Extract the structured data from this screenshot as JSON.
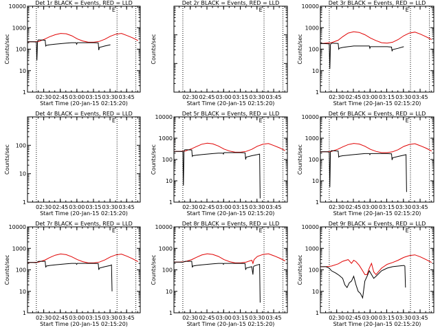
{
  "figure": {
    "background": "#ffffff",
    "event_color": "#000000",
    "lld_color": "#e00000"
  },
  "panel_defaults": {
    "type": "line",
    "xlabel": "Start Time (20-Jan-15 02:15:20)",
    "ylabel": "Counts/sec",
    "yscale": "log",
    "ylim_short": [
      1,
      1000
    ],
    "ylim_long": [
      1,
      10000
    ],
    "xlim_minutes_after_start": [
      0,
      102
    ],
    "x_tick_labels": [
      "02:30",
      "02:45",
      "03:00",
      "03:15",
      "03:30",
      "03:45"
    ],
    "x_tick_minutes_after_start": [
      14.67,
      29.67,
      44.67,
      59.67,
      74.67,
      89.67
    ],
    "dotted_vlines_minutes_after_start": [
      8,
      81,
      98
    ],
    "e_marker": "E",
    "e_marker_minute": 78
  },
  "chart_data": [
    {
      "title": "Det 1r BLACK = Events, RED = LLD",
      "ylim": [
        1,
        10000
      ],
      "y_tick_labels": [
        "1",
        "10",
        "100",
        "1000",
        "10000"
      ],
      "series": [
        {
          "name": "LLD",
          "color": "#e00000",
          "x": [
            0,
            5,
            10,
            16,
            20,
            25,
            30,
            35,
            40,
            45,
            50,
            55,
            60,
            65,
            70,
            75,
            80,
            85,
            90,
            95,
            100
          ],
          "y": [
            220,
            220,
            225,
            300,
            380,
            470,
            540,
            520,
            420,
            300,
            240,
            210,
            210,
            230,
            290,
            400,
            500,
            540,
            430,
            340,
            250
          ]
        },
        {
          "name": "Events",
          "color": "#000000",
          "x": [
            0,
            5,
            8,
            8.5,
            9,
            9.5,
            10,
            16,
            16.5,
            17,
            20,
            25,
            30,
            35,
            40,
            44,
            44.5,
            45,
            50,
            55,
            60,
            64,
            64.5,
            65,
            70,
            75
          ],
          "y": [
            220,
            220,
            215,
            30,
            200,
            260,
            270,
            260,
            140,
            150,
            160,
            170,
            180,
            190,
            200,
            200,
            170,
            200,
            200,
            200,
            200,
            195,
            90,
            120,
            140,
            160
          ]
        }
      ]
    },
    {
      "title": "Det 2r BLACK = Events, RED = LLD",
      "ylim": [
        1,
        1000
      ],
      "y_tick_labels": [],
      "series": [
        {
          "name": "LLD",
          "color": "#e00000",
          "x": [],
          "y": []
        },
        {
          "name": "Events",
          "color": "#000000",
          "x": [],
          "y": []
        }
      ]
    },
    {
      "title": "Det 3r BLACK = Events, RED = LLD",
      "ylim": [
        1,
        10000
      ],
      "y_tick_labels": [
        "1",
        "10",
        "100",
        "1000",
        "10000"
      ],
      "series": [
        {
          "name": "LLD",
          "color": "#e00000",
          "x": [
            0,
            5,
            10,
            16,
            20,
            25,
            30,
            35,
            40,
            45,
            50,
            55,
            60,
            65,
            70,
            75,
            80,
            85,
            90,
            95,
            100
          ],
          "y": [
            180,
            190,
            200,
            260,
            380,
            560,
            650,
            600,
            470,
            330,
            250,
            200,
            190,
            210,
            280,
            420,
            560,
            620,
            500,
            380,
            280
          ]
        },
        {
          "name": "Events",
          "color": "#000000",
          "x": [
            0,
            5,
            8,
            8.5,
            9,
            9.5,
            10,
            16,
            16.5,
            17,
            20,
            25,
            30,
            35,
            40,
            44,
            44.5,
            45,
            50,
            55,
            60,
            64,
            64.5,
            65,
            70,
            75
          ],
          "y": [
            180,
            180,
            175,
            12,
            160,
            180,
            190,
            185,
            100,
            110,
            120,
            130,
            140,
            140,
            140,
            140,
            110,
            130,
            130,
            130,
            130,
            125,
            80,
            95,
            110,
            130
          ]
        }
      ]
    },
    {
      "title": "Det 4r BLACK = Events, RED = LLD",
      "ylim": [
        1,
        1000
      ],
      "y_tick_labels": [
        "1",
        "10",
        "100"
      ],
      "series": [
        {
          "name": "LLD",
          "color": "#e00000",
          "x": [],
          "y": []
        },
        {
          "name": "Events",
          "color": "#000000",
          "x": [],
          "y": []
        }
      ]
    },
    {
      "title": "Det 5r BLACK = Events, RED = LLD",
      "ylim": [
        1,
        10000
      ],
      "y_tick_labels": [
        "1",
        "10",
        "100",
        "1000",
        "10000"
      ],
      "series": [
        {
          "name": "LLD",
          "color": "#e00000",
          "x": [
            0,
            5,
            10,
            16,
            20,
            25,
            30,
            35,
            40,
            45,
            50,
            55,
            60,
            65,
            70,
            75,
            80,
            85,
            90,
            95,
            100
          ],
          "y": [
            240,
            240,
            250,
            320,
            400,
            520,
            580,
            540,
            430,
            310,
            250,
            220,
            220,
            240,
            300,
            420,
            520,
            560,
            450,
            350,
            260
          ]
        },
        {
          "name": "Events",
          "color": "#000000",
          "x": [
            0,
            5,
            8,
            8.5,
            9,
            9.5,
            10,
            16,
            16.5,
            17,
            20,
            25,
            30,
            35,
            40,
            44,
            44.5,
            45,
            50,
            55,
            60,
            64,
            64.5,
            65,
            70,
            75,
            77,
            77.5
          ],
          "y": [
            240,
            240,
            235,
            6,
            240,
            280,
            290,
            280,
            140,
            150,
            160,
            170,
            180,
            190,
            200,
            200,
            180,
            210,
            210,
            210,
            210,
            205,
            100,
            130,
            150,
            170,
            180,
            1.5
          ]
        }
      ]
    },
    {
      "title": "Det 6r BLACK = Events, RED = LLD",
      "ylim": [
        1,
        10000
      ],
      "y_tick_labels": [
        "1",
        "10",
        "100",
        "1000",
        "10000"
      ],
      "series": [
        {
          "name": "LLD",
          "color": "#e00000",
          "x": [
            0,
            5,
            10,
            16,
            20,
            25,
            30,
            35,
            40,
            45,
            50,
            55,
            60,
            65,
            70,
            75,
            80,
            85,
            90,
            95,
            100
          ],
          "y": [
            230,
            230,
            240,
            310,
            390,
            500,
            570,
            530,
            420,
            300,
            240,
            210,
            210,
            230,
            290,
            410,
            510,
            550,
            440,
            340,
            250
          ]
        },
        {
          "name": "Events",
          "color": "#000000",
          "x": [
            0,
            5,
            8,
            8.5,
            9,
            9.5,
            10,
            16,
            16.5,
            17,
            20,
            25,
            30,
            35,
            40,
            44,
            44.5,
            45,
            50,
            55,
            60,
            64,
            64.5,
            65,
            70,
            75,
            77,
            77.5
          ],
          "y": [
            230,
            230,
            225,
            5,
            220,
            250,
            260,
            250,
            130,
            140,
            150,
            160,
            170,
            180,
            190,
            190,
            170,
            190,
            190,
            190,
            190,
            185,
            95,
            120,
            140,
            160,
            170,
            3
          ]
        }
      ]
    },
    {
      "title": "Det 7r BLACK = Events, RED = LLD",
      "ylim": [
        1,
        10000
      ],
      "y_tick_labels": [
        "1",
        "10",
        "100",
        "1000",
        "10000"
      ],
      "series": [
        {
          "name": "LLD",
          "color": "#e00000",
          "x": [
            0,
            5,
            10,
            16,
            20,
            25,
            30,
            35,
            40,
            45,
            50,
            55,
            60,
            65,
            70,
            75,
            80,
            85,
            90,
            95,
            100
          ],
          "y": [
            220,
            220,
            230,
            290,
            370,
            480,
            550,
            510,
            410,
            300,
            240,
            210,
            210,
            230,
            290,
            400,
            500,
            540,
            430,
            330,
            240
          ]
        },
        {
          "name": "Events",
          "color": "#000000",
          "x": [
            0,
            5,
            8,
            10,
            16,
            16.5,
            17,
            20,
            25,
            30,
            35,
            40,
            44,
            44.5,
            45,
            50,
            55,
            60,
            64,
            64.5,
            65,
            70,
            75,
            76,
            76.5
          ],
          "y": [
            220,
            220,
            215,
            250,
            250,
            130,
            150,
            160,
            170,
            180,
            190,
            200,
            200,
            180,
            200,
            200,
            200,
            200,
            195,
            100,
            120,
            140,
            160,
            170,
            10
          ]
        }
      ]
    },
    {
      "title": "Det 8r BLACK = Events, RED = LLD",
      "ylim": [
        1,
        10000
      ],
      "y_tick_labels": [
        "1",
        "10",
        "100",
        "1000",
        "10000"
      ],
      "series": [
        {
          "name": "LLD",
          "color": "#e00000",
          "x": [
            0,
            5,
            10,
            16,
            20,
            25,
            30,
            35,
            40,
            45,
            50,
            55,
            60,
            65,
            70,
            71,
            72,
            75,
            80,
            85,
            90,
            95,
            100
          ],
          "y": [
            230,
            230,
            240,
            300,
            380,
            490,
            560,
            520,
            420,
            300,
            240,
            210,
            210,
            230,
            280,
            200,
            300,
            420,
            520,
            560,
            450,
            350,
            260
          ]
        },
        {
          "name": "Events",
          "color": "#000000",
          "x": [
            0,
            5,
            8,
            10,
            16,
            16.5,
            17,
            20,
            25,
            30,
            35,
            40,
            44,
            44.5,
            45,
            50,
            55,
            60,
            64,
            64.5,
            65,
            70,
            71,
            71.5,
            72,
            75,
            77,
            77.5
          ],
          "y": [
            230,
            230,
            225,
            250,
            250,
            130,
            150,
            160,
            170,
            180,
            190,
            200,
            200,
            180,
            200,
            200,
            200,
            200,
            195,
            100,
            120,
            140,
            60,
            140,
            150,
            170,
            180,
            3
          ]
        }
      ]
    },
    {
      "title": "Det 9r BLACK = Events, RED = LLD",
      "ylim": [
        1,
        10000
      ],
      "y_tick_labels": [
        "1",
        "10",
        "100",
        "1000",
        "10000"
      ],
      "series": [
        {
          "name": "LLD",
          "color": "#e00000",
          "x": [
            0,
            5,
            10,
            16,
            20,
            25,
            28,
            30,
            32,
            35,
            38,
            40,
            42,
            44,
            46,
            48,
            50,
            55,
            60,
            65,
            70,
            75,
            80,
            85,
            90,
            95,
            100
          ],
          "y": [
            140,
            140,
            150,
            190,
            250,
            300,
            200,
            280,
            240,
            160,
            90,
            60,
            60,
            120,
            200,
            80,
            60,
            120,
            180,
            220,
            280,
            380,
            460,
            500,
            400,
            300,
            220
          ]
        },
        {
          "name": "Events",
          "color": "#000000",
          "x": [
            0,
            5,
            8,
            10,
            14,
            17,
            20,
            22,
            24,
            26,
            28,
            30,
            32,
            34,
            36,
            38,
            40,
            42,
            44,
            46,
            48,
            50,
            55,
            60,
            65,
            70,
            75,
            76,
            76.5
          ],
          "y": [
            140,
            140,
            120,
            90,
            70,
            55,
            40,
            20,
            15,
            25,
            30,
            50,
            20,
            10,
            8,
            5,
            30,
            50,
            90,
            60,
            40,
            50,
            90,
            120,
            140,
            150,
            160,
            150,
            15
          ]
        }
      ]
    }
  ]
}
